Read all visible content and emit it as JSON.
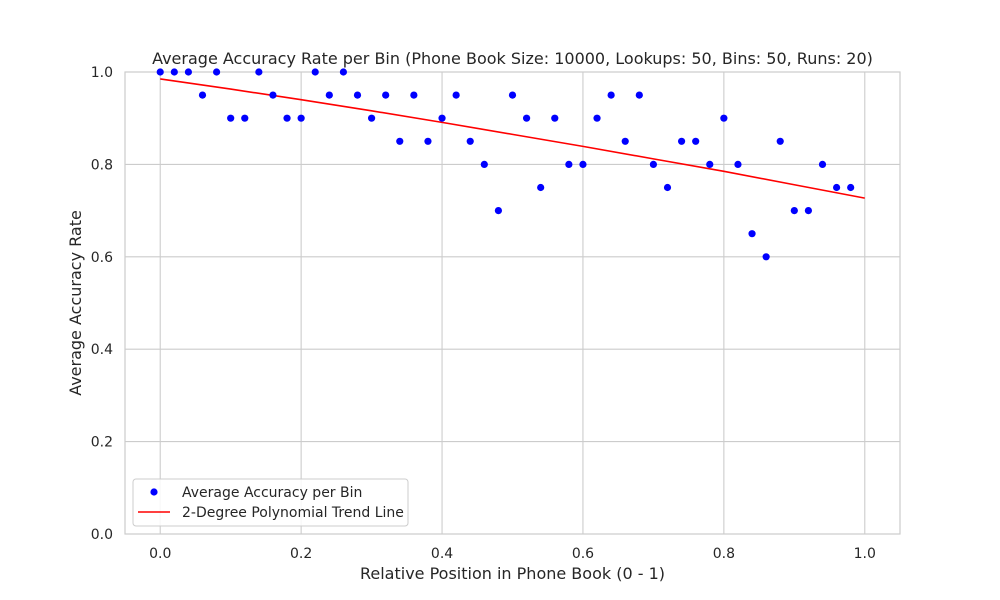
{
  "chart_data": {
    "type": "scatter",
    "title": "Average Accuracy Rate per Bin (Phone Book Size: 10000, Lookups: 50, Bins: 50, Runs: 20)",
    "xlabel": "Relative Position in Phone Book (0 - 1)",
    "ylabel": "Average Accuracy Rate",
    "xlim": [
      -0.05,
      1.05
    ],
    "ylim": [
      0.0,
      1.0
    ],
    "xticks": [
      "0.0",
      "0.2",
      "0.4",
      "0.6",
      "0.8",
      "1.0"
    ],
    "yticks": [
      "0.0",
      "0.2",
      "0.4",
      "0.6",
      "0.8",
      "1.0"
    ],
    "grid": true,
    "legend_position": "lower-left",
    "series": [
      {
        "name": "Average Accuracy per Bin",
        "kind": "scatter",
        "color": "#0000ff",
        "x": [
          0.0,
          0.02,
          0.04,
          0.06,
          0.08,
          0.1,
          0.12,
          0.14,
          0.16,
          0.18,
          0.2,
          0.22,
          0.24,
          0.26,
          0.28,
          0.3,
          0.32,
          0.34,
          0.36,
          0.38,
          0.4,
          0.42,
          0.44,
          0.46,
          0.48,
          0.5,
          0.52,
          0.54,
          0.56,
          0.58,
          0.6,
          0.62,
          0.64,
          0.66,
          0.68,
          0.7,
          0.72,
          0.74,
          0.76,
          0.78,
          0.8,
          0.82,
          0.84,
          0.86,
          0.88,
          0.9,
          0.92,
          0.94,
          0.96,
          0.98
        ],
        "y": [
          1.0,
          1.0,
          1.0,
          0.95,
          1.0,
          0.9,
          0.9,
          1.0,
          0.95,
          0.9,
          0.9,
          1.0,
          0.95,
          1.0,
          0.95,
          0.9,
          0.95,
          0.85,
          0.95,
          0.85,
          0.9,
          0.95,
          0.85,
          0.8,
          0.7,
          0.95,
          0.9,
          0.75,
          0.9,
          0.8,
          0.8,
          0.9,
          0.95,
          0.85,
          0.95,
          0.8,
          0.75,
          0.85,
          0.85,
          0.8,
          0.9,
          0.8,
          0.65,
          0.6,
          0.85,
          0.7,
          0.7,
          0.8,
          0.75,
          0.75
        ]
      },
      {
        "name": "2-Degree Polynomial Trend Line",
        "kind": "line",
        "color": "#ff0000",
        "x": [
          0.0,
          0.1,
          0.2,
          0.3,
          0.4,
          0.5,
          0.6,
          0.7,
          0.8,
          0.9,
          1.0
        ],
        "y": [
          0.985,
          0.963,
          0.94,
          0.916,
          0.891,
          0.865,
          0.839,
          0.812,
          0.785,
          0.756,
          0.727
        ]
      }
    ]
  }
}
